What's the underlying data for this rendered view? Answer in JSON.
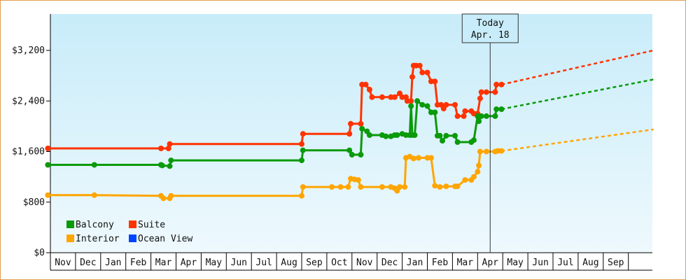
{
  "chart_data": {
    "type": "line",
    "ylim": [
      0,
      4000
    ],
    "y_ticks": [
      {
        "value": 0,
        "label": "$0"
      },
      {
        "value": 800,
        "label": "$800"
      },
      {
        "value": 1600,
        "label": "$1,600"
      },
      {
        "value": 2400,
        "label": "$2,400"
      },
      {
        "value": 3200,
        "label": "$3,200"
      }
    ],
    "x_ticks": [
      "Nov",
      "Dec",
      "Jan",
      "Feb",
      "Mar",
      "Apr",
      "May",
      "Jun",
      "Jul",
      "Aug",
      "Sep",
      "Oct",
      "Nov",
      "Dec",
      "Jan",
      "Feb",
      "Mar",
      "Apr",
      "May",
      "Jun",
      "Jul",
      "Aug",
      "Sep"
    ],
    "grid": false,
    "legend_placement": "bottom-left",
    "today_marker": {
      "line1": "Today",
      "line2": "Apr. 18",
      "x": 17.5
    },
    "series": [
      {
        "name": "Suite",
        "color": "#ff3300",
        "points": [
          [
            -0.1,
            1650
          ],
          [
            4.4,
            1650
          ],
          [
            4.7,
            1650
          ],
          [
            4.75,
            1720
          ],
          [
            10.0,
            1720
          ],
          [
            10.05,
            1880
          ],
          [
            11.9,
            1880
          ],
          [
            11.95,
            2040
          ],
          [
            12.35,
            2040
          ],
          [
            12.4,
            2660
          ],
          [
            12.55,
            2660
          ],
          [
            12.7,
            2580
          ],
          [
            12.8,
            2460
          ],
          [
            13.2,
            2460
          ],
          [
            13.55,
            2460
          ],
          [
            13.7,
            2460
          ],
          [
            13.9,
            2520
          ],
          [
            14.0,
            2460
          ],
          [
            14.15,
            2460
          ],
          [
            14.2,
            2400
          ],
          [
            14.35,
            2400
          ],
          [
            14.4,
            2780
          ],
          [
            14.45,
            2960
          ],
          [
            14.55,
            2960
          ],
          [
            14.7,
            2960
          ],
          [
            14.8,
            2850
          ],
          [
            15.0,
            2850
          ],
          [
            15.15,
            2710
          ],
          [
            15.3,
            2710
          ],
          [
            15.4,
            2340
          ],
          [
            15.55,
            2340
          ],
          [
            15.65,
            2280
          ],
          [
            15.75,
            2340
          ],
          [
            16.1,
            2340
          ],
          [
            16.2,
            2160
          ],
          [
            16.45,
            2160
          ],
          [
            16.5,
            2240
          ],
          [
            16.75,
            2240
          ],
          [
            16.85,
            2200
          ],
          [
            17.0,
            2200
          ],
          [
            17.1,
            2440
          ],
          [
            17.15,
            2540
          ],
          [
            17.35,
            2540
          ],
          [
            17.7,
            2540
          ],
          [
            17.75,
            2660
          ],
          [
            17.95,
            2660
          ]
        ],
        "projection": [
          [
            17.95,
            2660
          ],
          [
            24.0,
            3200
          ]
        ]
      },
      {
        "name": "Balcony",
        "color": "#0a9a0a",
        "points": [
          [
            -0.1,
            1390
          ],
          [
            1.75,
            1390
          ],
          [
            4.4,
            1390
          ],
          [
            4.45,
            1380
          ],
          [
            4.75,
            1370
          ],
          [
            4.8,
            1460
          ],
          [
            10.0,
            1460
          ],
          [
            10.05,
            1620
          ],
          [
            11.9,
            1620
          ],
          [
            12.0,
            1550
          ],
          [
            12.35,
            1550
          ],
          [
            12.4,
            1960
          ],
          [
            12.6,
            1920
          ],
          [
            12.7,
            1860
          ],
          [
            13.2,
            1860
          ],
          [
            13.35,
            1840
          ],
          [
            13.55,
            1840
          ],
          [
            13.7,
            1860
          ],
          [
            13.8,
            1860
          ],
          [
            14.0,
            1880
          ],
          [
            14.15,
            1860
          ],
          [
            14.3,
            1860
          ],
          [
            14.35,
            2320
          ],
          [
            14.4,
            1860
          ],
          [
            14.5,
            1860
          ],
          [
            14.6,
            2400
          ],
          [
            14.8,
            2340
          ],
          [
            15.0,
            2320
          ],
          [
            15.15,
            2220
          ],
          [
            15.3,
            2220
          ],
          [
            15.4,
            1850
          ],
          [
            15.5,
            1850
          ],
          [
            15.6,
            1770
          ],
          [
            15.75,
            1850
          ],
          [
            16.1,
            1850
          ],
          [
            16.2,
            1750
          ],
          [
            16.75,
            1750
          ],
          [
            16.85,
            1780
          ],
          [
            17.0,
            2160
          ],
          [
            17.05,
            2080
          ],
          [
            17.15,
            2160
          ],
          [
            17.35,
            2160
          ],
          [
            17.7,
            2160
          ],
          [
            17.75,
            2270
          ],
          [
            17.95,
            2270
          ]
        ],
        "projection": [
          [
            17.95,
            2270
          ],
          [
            24.0,
            2740
          ]
        ]
      },
      {
        "name": "Interior",
        "color": "#ffa500",
        "points": [
          [
            -0.1,
            910
          ],
          [
            1.75,
            910
          ],
          [
            4.4,
            900
          ],
          [
            4.5,
            860
          ],
          [
            4.75,
            860
          ],
          [
            4.8,
            900
          ],
          [
            10.0,
            900
          ],
          [
            10.05,
            1040
          ],
          [
            11.2,
            1040
          ],
          [
            11.55,
            1040
          ],
          [
            11.85,
            1040
          ],
          [
            11.95,
            1170
          ],
          [
            12.1,
            1160
          ],
          [
            12.25,
            1150
          ],
          [
            12.35,
            1040
          ],
          [
            13.2,
            1040
          ],
          [
            13.55,
            1040
          ],
          [
            13.7,
            1020
          ],
          [
            13.8,
            980
          ],
          [
            13.9,
            1040
          ],
          [
            14.1,
            1040
          ],
          [
            14.15,
            1500
          ],
          [
            14.3,
            1520
          ],
          [
            14.45,
            1490
          ],
          [
            14.65,
            1500
          ],
          [
            15.0,
            1500
          ],
          [
            15.15,
            1500
          ],
          [
            15.3,
            1060
          ],
          [
            15.5,
            1040
          ],
          [
            15.75,
            1050
          ],
          [
            16.1,
            1050
          ],
          [
            16.2,
            1050
          ],
          [
            16.5,
            1150
          ],
          [
            16.75,
            1150
          ],
          [
            16.85,
            1200
          ],
          [
            17.0,
            1280
          ],
          [
            17.05,
            1380
          ],
          [
            17.1,
            1600
          ],
          [
            17.35,
            1600
          ],
          [
            17.7,
            1600
          ],
          [
            17.8,
            1610
          ],
          [
            17.95,
            1610
          ]
        ],
        "projection": [
          [
            17.95,
            1610
          ],
          [
            24.0,
            1950
          ]
        ]
      },
      {
        "name": "Ocean View",
        "color": "#0044ff",
        "points": [],
        "projection": []
      }
    ]
  }
}
